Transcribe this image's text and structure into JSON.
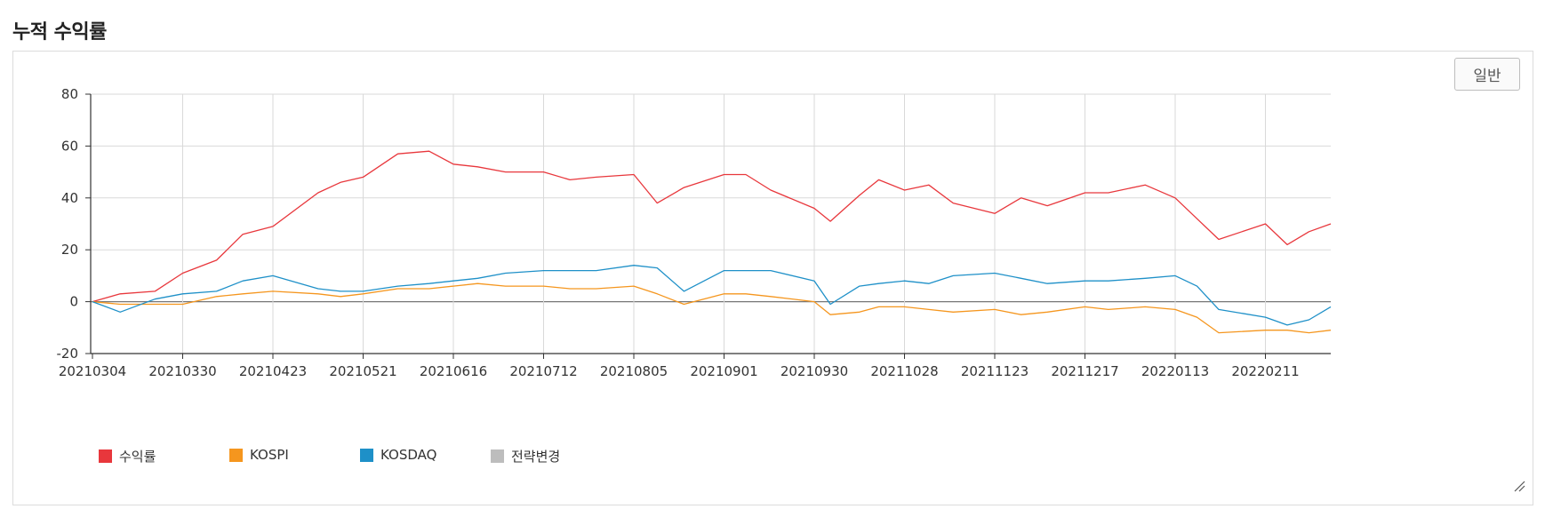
{
  "section": {
    "title": "누적 수익률"
  },
  "toolbar": {
    "mode_label": "일반"
  },
  "colors": {
    "return": "#e8373c",
    "kospi": "#f5961e",
    "kosdaq": "#1e90c8",
    "strategy_change": "#bdbdbd"
  },
  "chart_data": {
    "type": "line",
    "title": "누적 수익률",
    "xlabel": "",
    "ylabel": "",
    "ylim": [
      -20,
      80
    ],
    "yticks": [
      -20,
      0,
      20,
      40,
      60,
      80
    ],
    "grid": true,
    "legend_position": "bottom-left",
    "xtick_labels": [
      "20210304",
      "20210330",
      "20210423",
      "20210521",
      "20210616",
      "20210712",
      "20210805",
      "20210901",
      "20210930",
      "20211028",
      "20211123",
      "20211217",
      "20220113",
      "20220211"
    ],
    "x_points": [
      "20210304",
      "20210312",
      "20210322",
      "20210330",
      "20210408",
      "20210415",
      "20210423",
      "20210507",
      "20210514",
      "20210521",
      "20210531",
      "20210609",
      "20210616",
      "20210623",
      "20210701",
      "20210712",
      "20210719",
      "20210726",
      "20210805",
      "20210812",
      "20210820",
      "20210901",
      "20210908",
      "20210916",
      "20210930",
      "20211005",
      "20211014",
      "20211020",
      "20211028",
      "20211104",
      "20211111",
      "20211123",
      "20211130",
      "20211207",
      "20211217",
      "20211224",
      "20220104",
      "20220113",
      "20220120",
      "20220127",
      "20220211",
      "20220218",
      "20220225",
      "20220304"
    ],
    "series": [
      {
        "name": "수익률",
        "color": "#e8373c",
        "values": [
          0,
          3,
          4,
          11,
          16,
          26,
          29,
          42,
          46,
          48,
          57,
          58,
          53,
          52,
          50,
          50,
          47,
          48,
          49,
          38,
          44,
          49,
          49,
          43,
          36,
          31,
          41,
          47,
          43,
          45,
          38,
          34,
          40,
          37,
          42,
          42,
          45,
          40,
          32,
          24,
          30,
          22,
          27,
          30
        ]
      },
      {
        "name": "KOSPI",
        "color": "#f5961e",
        "values": [
          0,
          -1,
          -1,
          -1,
          2,
          3,
          4,
          3,
          2,
          3,
          5,
          5,
          6,
          7,
          6,
          6,
          5,
          5,
          6,
          3,
          -1,
          3,
          3,
          2,
          0,
          -5,
          -4,
          -2,
          -2,
          -3,
          -4,
          -3,
          -5,
          -4,
          -2,
          -3,
          -2,
          -3,
          -6,
          -12,
          -11,
          -11,
          -12,
          -11
        ]
      },
      {
        "name": "KOSDAQ",
        "color": "#1e90c8",
        "values": [
          0,
          -4,
          1,
          3,
          4,
          8,
          10,
          5,
          4,
          4,
          6,
          7,
          8,
          9,
          11,
          12,
          12,
          12,
          14,
          13,
          4,
          12,
          12,
          12,
          8,
          -1,
          6,
          7,
          8,
          7,
          10,
          11,
          9,
          7,
          8,
          8,
          9,
          10,
          6,
          -3,
          -6,
          -9,
          -7,
          -2
        ]
      },
      {
        "name": "전략변경",
        "color": "#bdbdbd",
        "values": []
      }
    ]
  }
}
